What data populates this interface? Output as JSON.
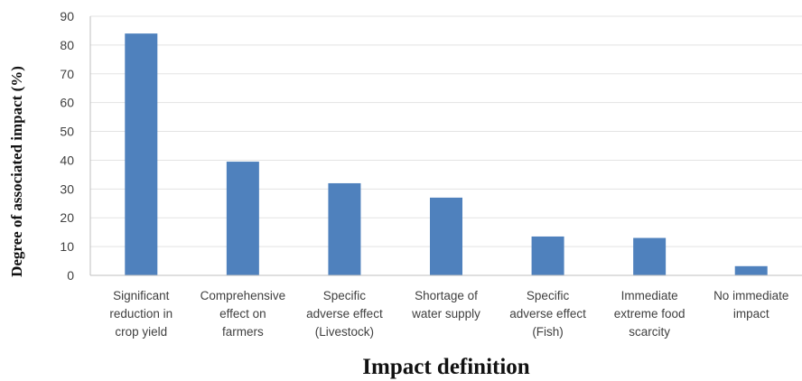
{
  "chart_data": {
    "type": "bar",
    "categories": [
      [
        "Significant",
        "reduction in",
        "crop yield"
      ],
      [
        "Comprehensive",
        "effect on",
        "farmers"
      ],
      [
        "Specific",
        "adverse effect",
        "(Livestock)"
      ],
      [
        "Shortage of",
        "water supply"
      ],
      [
        "Specific",
        "adverse effect",
        "(Fish)"
      ],
      [
        "Immediate",
        "extreme food",
        "scarcity"
      ],
      [
        "No immediate",
        "impact"
      ]
    ],
    "values": [
      84,
      39.5,
      32,
      27,
      13.5,
      13,
      3.2
    ],
    "xlabel": "Impact definition",
    "ylabel": "Degree of associated impact (%)",
    "ylim": [
      0,
      90
    ],
    "yticks": [
      0,
      10,
      20,
      30,
      40,
      50,
      60,
      70,
      80,
      90
    ],
    "grid": true,
    "legend": "none",
    "bar_color": "#4F81BD"
  }
}
